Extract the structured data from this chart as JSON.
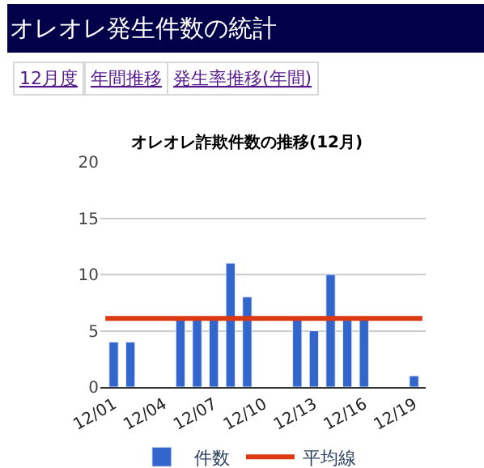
{
  "chart_data": {
    "type": "bar",
    "title": "オレオレ発生件数の統計",
    "subtitle": "オレオレ詐欺件数の推移(12月)",
    "annotations": [
      "12月度",
      "年間推移",
      "発生率推移(年間)"
    ],
    "categories": [
      "12/01",
      null,
      null,
      "12/04",
      null,
      null,
      "12/07",
      null,
      null,
      "12/10",
      null,
      null,
      "12/13",
      null,
      null,
      "12/16",
      null,
      null,
      "12/19"
    ],
    "series": [
      {
        "name": "件数",
        "color": "#3366cc",
        "values": [
          4,
          4,
          null,
          null,
          6,
          6,
          6,
          11,
          8,
          null,
          null,
          6,
          5,
          10,
          6,
          6,
          null,
          null,
          1
        ]
      }
    ],
    "ref_lines": [
      {
        "axis": "y",
        "value": 6.1,
        "label": "平均線",
        "color": "#dc3912"
      }
    ],
    "ylim": [
      0,
      20
    ],
    "yticks": [
      0,
      5,
      10,
      15,
      20
    ],
    "grid": "y",
    "legend": "bottom"
  }
}
